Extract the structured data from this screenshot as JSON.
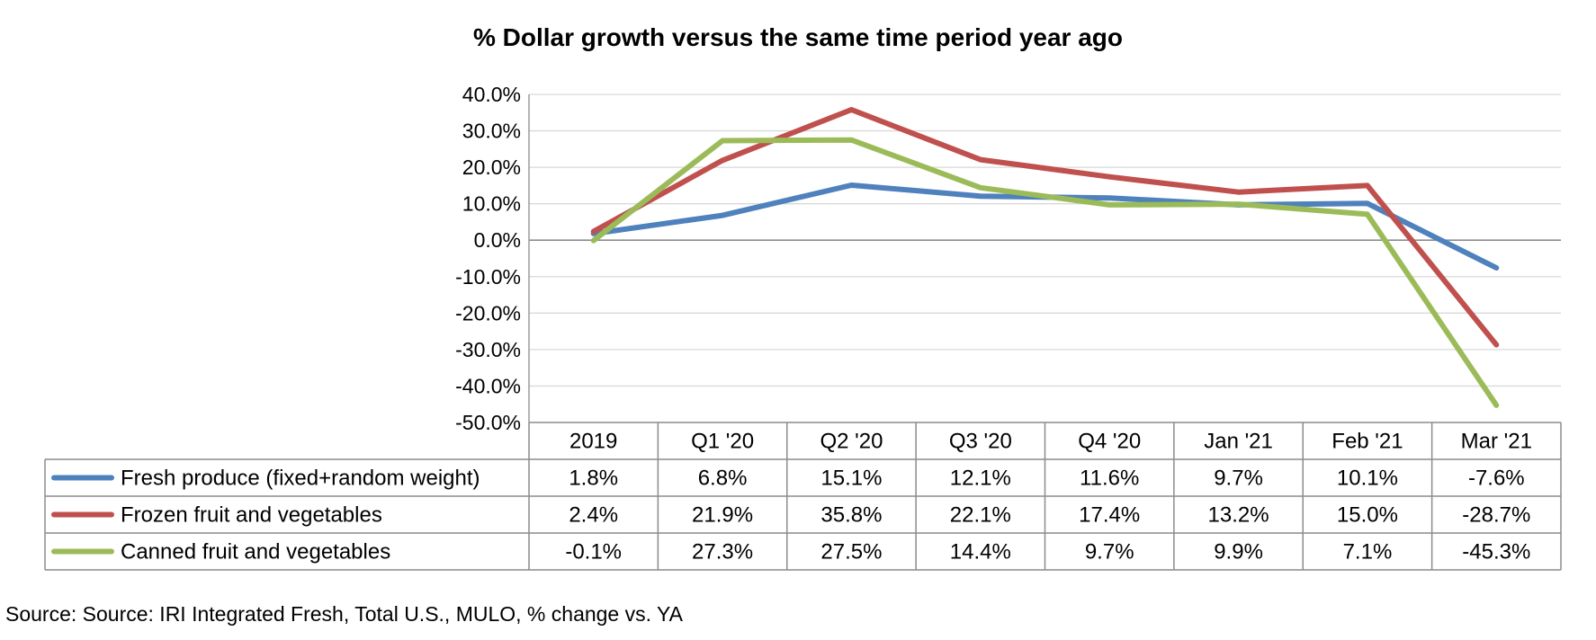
{
  "chart_data": {
    "type": "line",
    "title": "% Dollar growth versus the same time period year ago",
    "categories": [
      "2019",
      "Q1 '20",
      "Q2 '20",
      "Q3 '20",
      "Q4 '20",
      "Jan '21",
      "Feb '21",
      "Mar '21"
    ],
    "ylim": [
      -50,
      40
    ],
    "y_ticks": [
      "40.0%",
      "30.0%",
      "20.0%",
      "10.0%",
      "0.0%",
      "-10.0%",
      "-20.0%",
      "-30.0%",
      "-40.0%",
      "-50.0%"
    ],
    "grid": true,
    "legend": "data-table",
    "series": [
      {
        "name": "Fresh produce (fixed+random weight)",
        "color": "#4F81BD",
        "values": [
          1.8,
          6.8,
          15.1,
          12.1,
          11.6,
          9.7,
          10.1,
          -7.6
        ],
        "labels": [
          "1.8%",
          "6.8%",
          "15.1%",
          "12.1%",
          "11.6%",
          "9.7%",
          "10.1%",
          "-7.6%"
        ]
      },
      {
        "name": "Frozen fruit and vegetables",
        "color": "#C0504D",
        "values": [
          2.4,
          21.9,
          35.8,
          22.1,
          17.4,
          13.2,
          15.0,
          -28.7
        ],
        "labels": [
          "2.4%",
          "21.9%",
          "35.8%",
          "22.1%",
          "17.4%",
          "13.2%",
          "15.0%",
          "-28.7%"
        ]
      },
      {
        "name": "Canned fruit and vegetables",
        "color": "#9BBB59",
        "values": [
          -0.1,
          27.3,
          27.5,
          14.4,
          9.7,
          9.9,
          7.1,
          -45.3
        ],
        "labels": [
          "-0.1%",
          "27.3%",
          "27.5%",
          "14.4%",
          "9.7%",
          "9.9%",
          "7.1%",
          "-45.3%"
        ]
      }
    ]
  },
  "source": "Source: Source: IRI Integrated Fresh, Total U.S., MULO, % change vs. YA"
}
